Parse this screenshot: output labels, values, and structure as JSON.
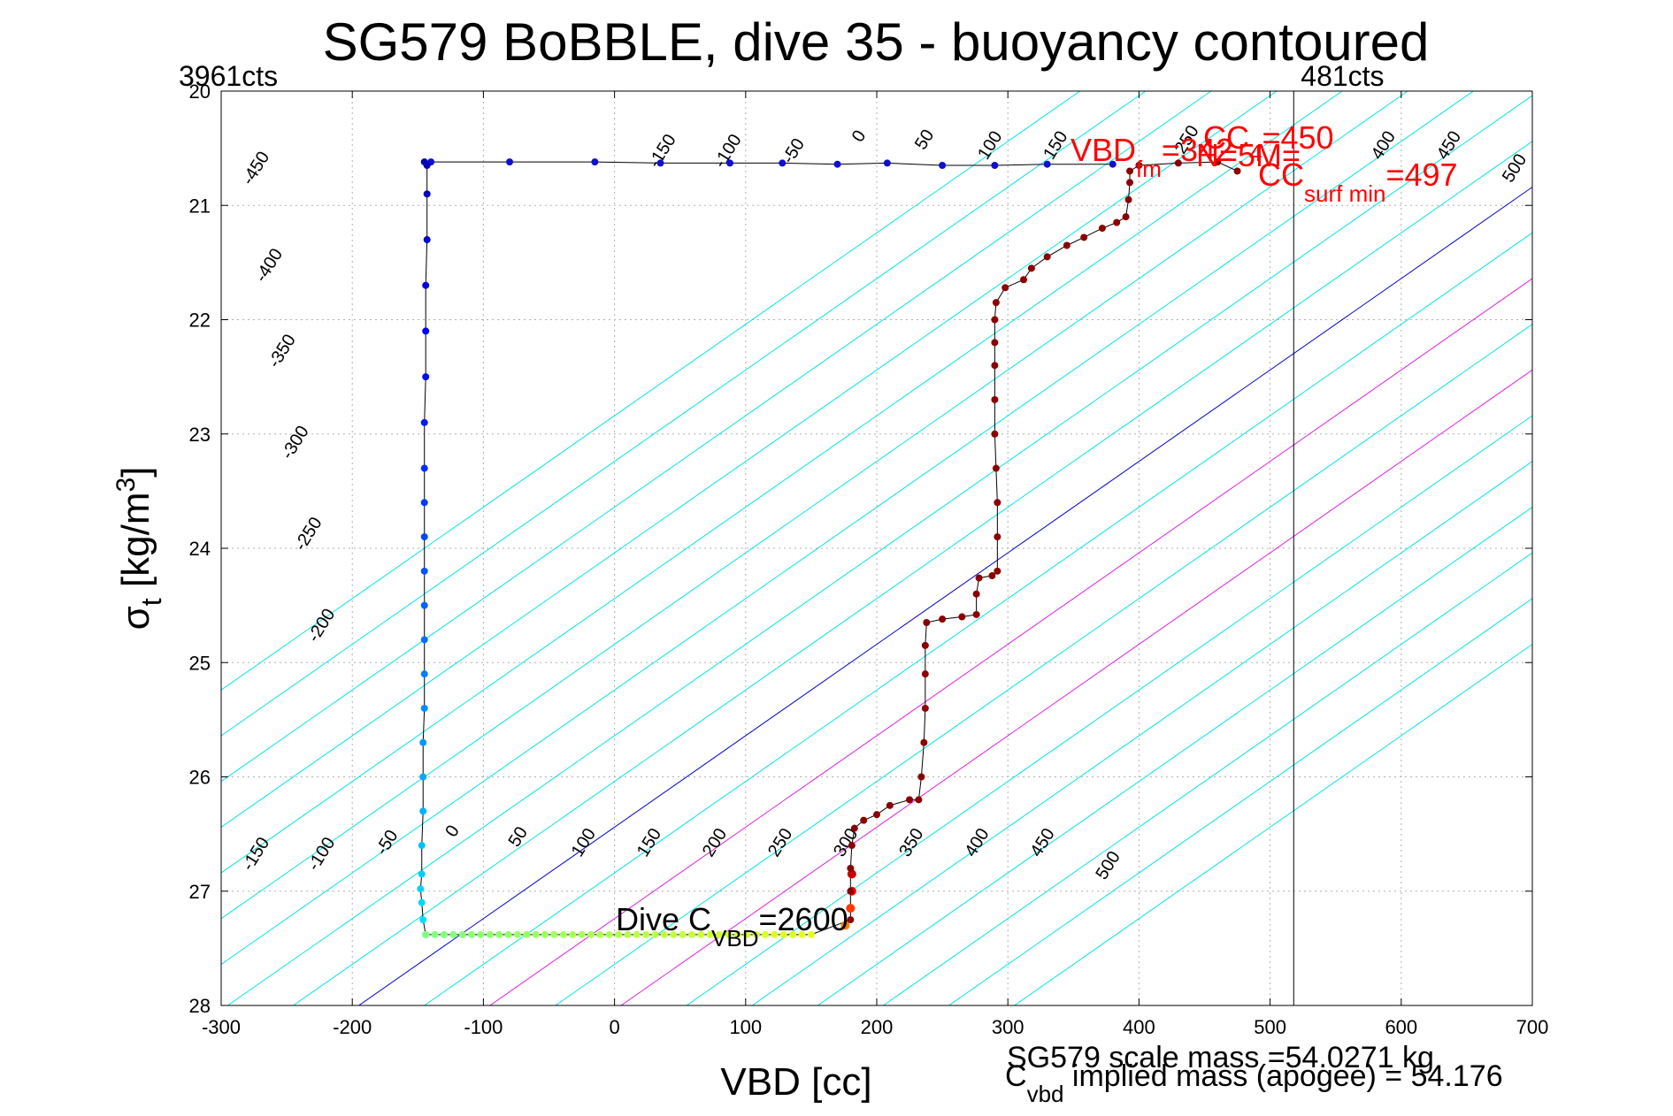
{
  "chart_data": {
    "type": "scatter",
    "title": "SG579 BoBBLE, dive 35 - buoyancy contoured",
    "xlabel": "VBD [cc]",
    "ylabel_main": "σ",
    "ylabel_sub": "t",
    "ylabel_unit": " [kg/m",
    "ylabel_sup": "3",
    "ylabel_close": "]",
    "xlim": [
      -300,
      700
    ],
    "ylim": [
      20,
      28
    ],
    "y_reversed": true,
    "grid": true,
    "x_ticks": [
      "-300",
      "-200",
      "-100",
      "0",
      "100",
      "200",
      "300",
      "400",
      "500",
      "600",
      "700"
    ],
    "y_ticks": [
      "20",
      "21",
      "22",
      "23",
      "24",
      "25",
      "26",
      "27",
      "28"
    ],
    "colors": {
      "contour": "#00e5e5",
      "zero_line": "#0000cc",
      "magenta_line": "#e020e0",
      "annotation_red": "#ff0000",
      "dive_colormap": "jet",
      "climb": "#8b0000",
      "apogee": "#7fff3f"
    },
    "contours": {
      "slope_cc_per_sigma": 50,
      "levels": [
        -450,
        -400,
        -350,
        -300,
        -250,
        -200,
        -150,
        -100,
        -50,
        0,
        50,
        100,
        150,
        200,
        250,
        300,
        350,
        400,
        450,
        500
      ],
      "zero_level": 0,
      "magenta_levels": [
        100,
        200
      ],
      "top_labels": [
        {
          "text": "-450",
          "x": -270,
          "y": 20.7
        },
        {
          "text": "-400",
          "x": -260,
          "y": 21.55
        },
        {
          "text": "-350",
          "x": -250,
          "y": 22.3
        },
        {
          "text": "-300",
          "x": -240,
          "y": 23.1
        },
        {
          "text": "-250",
          "x": -230,
          "y": 23.9
        },
        {
          "text": "-200",
          "x": -220,
          "y": 24.7
        },
        {
          "text": "-150",
          "x": 40,
          "y": 20.55
        },
        {
          "text": "-100",
          "x": 90,
          "y": 20.55
        },
        {
          "text": "-50",
          "x": 140,
          "y": 20.55
        },
        {
          "text": "0",
          "x": 190,
          "y": 20.42
        },
        {
          "text": "50",
          "x": 240,
          "y": 20.45
        },
        {
          "text": "100",
          "x": 290,
          "y": 20.5
        },
        {
          "text": "150",
          "x": 340,
          "y": 20.5
        },
        {
          "text": "250",
          "x": 440,
          "y": 20.45
        },
        {
          "text": "400",
          "x": 590,
          "y": 20.5
        },
        {
          "text": "450",
          "x": 640,
          "y": 20.5
        },
        {
          "text": "500",
          "x": 690,
          "y": 20.7
        }
      ],
      "bottom_labels": [
        {
          "text": "-150",
          "x": -270,
          "y": 26.7
        },
        {
          "text": "-100",
          "x": -220,
          "y": 26.7
        },
        {
          "text": "-50",
          "x": -170,
          "y": 26.6
        },
        {
          "text": "0",
          "x": -120,
          "y": 26.5
        },
        {
          "text": "50",
          "x": -70,
          "y": 26.55
        },
        {
          "text": "100",
          "x": -20,
          "y": 26.6
        },
        {
          "text": "150",
          "x": 30,
          "y": 26.6
        },
        {
          "text": "200",
          "x": 80,
          "y": 26.6
        },
        {
          "text": "250",
          "x": 130,
          "y": 26.6
        },
        {
          "text": "300",
          "x": 180,
          "y": 26.6
        },
        {
          "text": "350",
          "x": 230,
          "y": 26.6
        },
        {
          "text": "400",
          "x": 280,
          "y": 26.6
        },
        {
          "text": "450",
          "x": 330,
          "y": 26.6
        },
        {
          "text": "500",
          "x": 380,
          "y": 26.8
        }
      ]
    },
    "dive_points": [
      {
        "x": -145,
        "y": 20.62
      },
      {
        "x": -143,
        "y": 20.65
      },
      {
        "x": -143,
        "y": 20.9
      },
      {
        "x": -143,
        "y": 21.3
      },
      {
        "x": -144,
        "y": 21.7
      },
      {
        "x": -144,
        "y": 22.1
      },
      {
        "x": -144,
        "y": 22.5
      },
      {
        "x": -145,
        "y": 22.9
      },
      {
        "x": -145,
        "y": 23.3
      },
      {
        "x": -145,
        "y": 23.6
      },
      {
        "x": -145,
        "y": 23.9
      },
      {
        "x": -145,
        "y": 24.2
      },
      {
        "x": -145,
        "y": 24.5
      },
      {
        "x": -145,
        "y": 24.8
      },
      {
        "x": -145,
        "y": 25.1
      },
      {
        "x": -145,
        "y": 25.4
      },
      {
        "x": -146,
        "y": 25.7
      },
      {
        "x": -146,
        "y": 26.0
      },
      {
        "x": -146,
        "y": 26.3
      },
      {
        "x": -147,
        "y": 26.6
      },
      {
        "x": -147,
        "y": 26.85
      },
      {
        "x": -148,
        "y": 26.98
      },
      {
        "x": -147,
        "y": 27.1
      },
      {
        "x": -146,
        "y": 27.25
      },
      {
        "x": -144,
        "y": 27.38
      }
    ],
    "apogee_points": {
      "x_start": -144,
      "x_end": 150,
      "y": 27.38,
      "step": 7
    },
    "climb_points": [
      {
        "x": 180,
        "y": 27.25
      },
      {
        "x": 180,
        "y": 27.0
      },
      {
        "x": 180,
        "y": 26.8
      },
      {
        "x": 181,
        "y": 26.6
      },
      {
        "x": 183,
        "y": 26.45
      },
      {
        "x": 190,
        "y": 26.38
      },
      {
        "x": 200,
        "y": 26.33
      },
      {
        "x": 210,
        "y": 26.25
      },
      {
        "x": 225,
        "y": 26.2
      },
      {
        "x": 232,
        "y": 26.2
      },
      {
        "x": 234,
        "y": 26.0
      },
      {
        "x": 236,
        "y": 25.7
      },
      {
        "x": 237,
        "y": 25.4
      },
      {
        "x": 237,
        "y": 25.1
      },
      {
        "x": 237,
        "y": 24.85
      },
      {
        "x": 238,
        "y": 24.65
      },
      {
        "x": 250,
        "y": 24.62
      },
      {
        "x": 265,
        "y": 24.6
      },
      {
        "x": 276,
        "y": 24.58
      },
      {
        "x": 276,
        "y": 24.4
      },
      {
        "x": 278,
        "y": 24.26
      },
      {
        "x": 288,
        "y": 24.24
      },
      {
        "x": 292,
        "y": 24.2
      },
      {
        "x": 292,
        "y": 23.9
      },
      {
        "x": 292,
        "y": 23.6
      },
      {
        "x": 291,
        "y": 23.3
      },
      {
        "x": 290,
        "y": 23.0
      },
      {
        "x": 290,
        "y": 22.7
      },
      {
        "x": 290,
        "y": 22.4
      },
      {
        "x": 290,
        "y": 22.2
      },
      {
        "x": 290,
        "y": 22.0
      },
      {
        "x": 291,
        "y": 21.85
      },
      {
        "x": 298,
        "y": 21.72
      },
      {
        "x": 312,
        "y": 21.65
      },
      {
        "x": 318,
        "y": 21.55
      },
      {
        "x": 330,
        "y": 21.45
      },
      {
        "x": 345,
        "y": 21.35
      },
      {
        "x": 358,
        "y": 21.28
      },
      {
        "x": 372,
        "y": 21.2
      },
      {
        "x": 383,
        "y": 21.15
      },
      {
        "x": 390,
        "y": 21.1
      },
      {
        "x": 392,
        "y": 20.95
      },
      {
        "x": 393,
        "y": 20.8
      },
      {
        "x": 393,
        "y": 20.7
      },
      {
        "x": 400,
        "y": 20.65
      },
      {
        "x": 430,
        "y": 20.63
      },
      {
        "x": 460,
        "y": 20.62
      },
      {
        "x": 475,
        "y": 20.7
      }
    ],
    "surface_points": [
      {
        "x": -140,
        "y": 20.62
      },
      {
        "x": -80,
        "y": 20.62
      },
      {
        "x": -15,
        "y": 20.62
      },
      {
        "x": 35,
        "y": 20.63
      },
      {
        "x": 88,
        "y": 20.63
      },
      {
        "x": 128,
        "y": 20.63
      },
      {
        "x": 170,
        "y": 20.64
      },
      {
        "x": 208,
        "y": 20.63
      },
      {
        "x": 250,
        "y": 20.65
      },
      {
        "x": 290,
        "y": 20.65
      },
      {
        "x": 330,
        "y": 20.64
      },
      {
        "x": 380,
        "y": 20.64
      }
    ],
    "count_lines": [
      {
        "label": "3961cts",
        "x": -300
      },
      {
        "label": "481cts",
        "x": 518
      }
    ],
    "annotations": {
      "vbd_fm": {
        "main": "VBD",
        "sub": "fm",
        "value": "=342",
        "x": 345,
        "y": 20.55
      },
      "cc_4": {
        "main": "CC",
        "sub": "4",
        "value": "=450",
        "x": 450,
        "y": 20.46
      },
      "cc_surf_min": {
        "main": "CC",
        "sub": "surf min",
        "value": "=497",
        "x": 485,
        "y": 20.8
      },
      "cc_n": {
        "text": "N=5M=",
        "x": 440,
        "y": 20.62
      },
      "dive_c_vbd": {
        "main": "Dive C",
        "sub": "VBD",
        "value": "=2600",
        "x": 2,
        "y": 27.3
      }
    },
    "footer": {
      "scale_mass": "SG579 scale mass =54.0271 kg",
      "implied_main": "C",
      "implied_sub": "vbd",
      "implied_rest": " implied mass (apogee) = 54.176"
    }
  }
}
